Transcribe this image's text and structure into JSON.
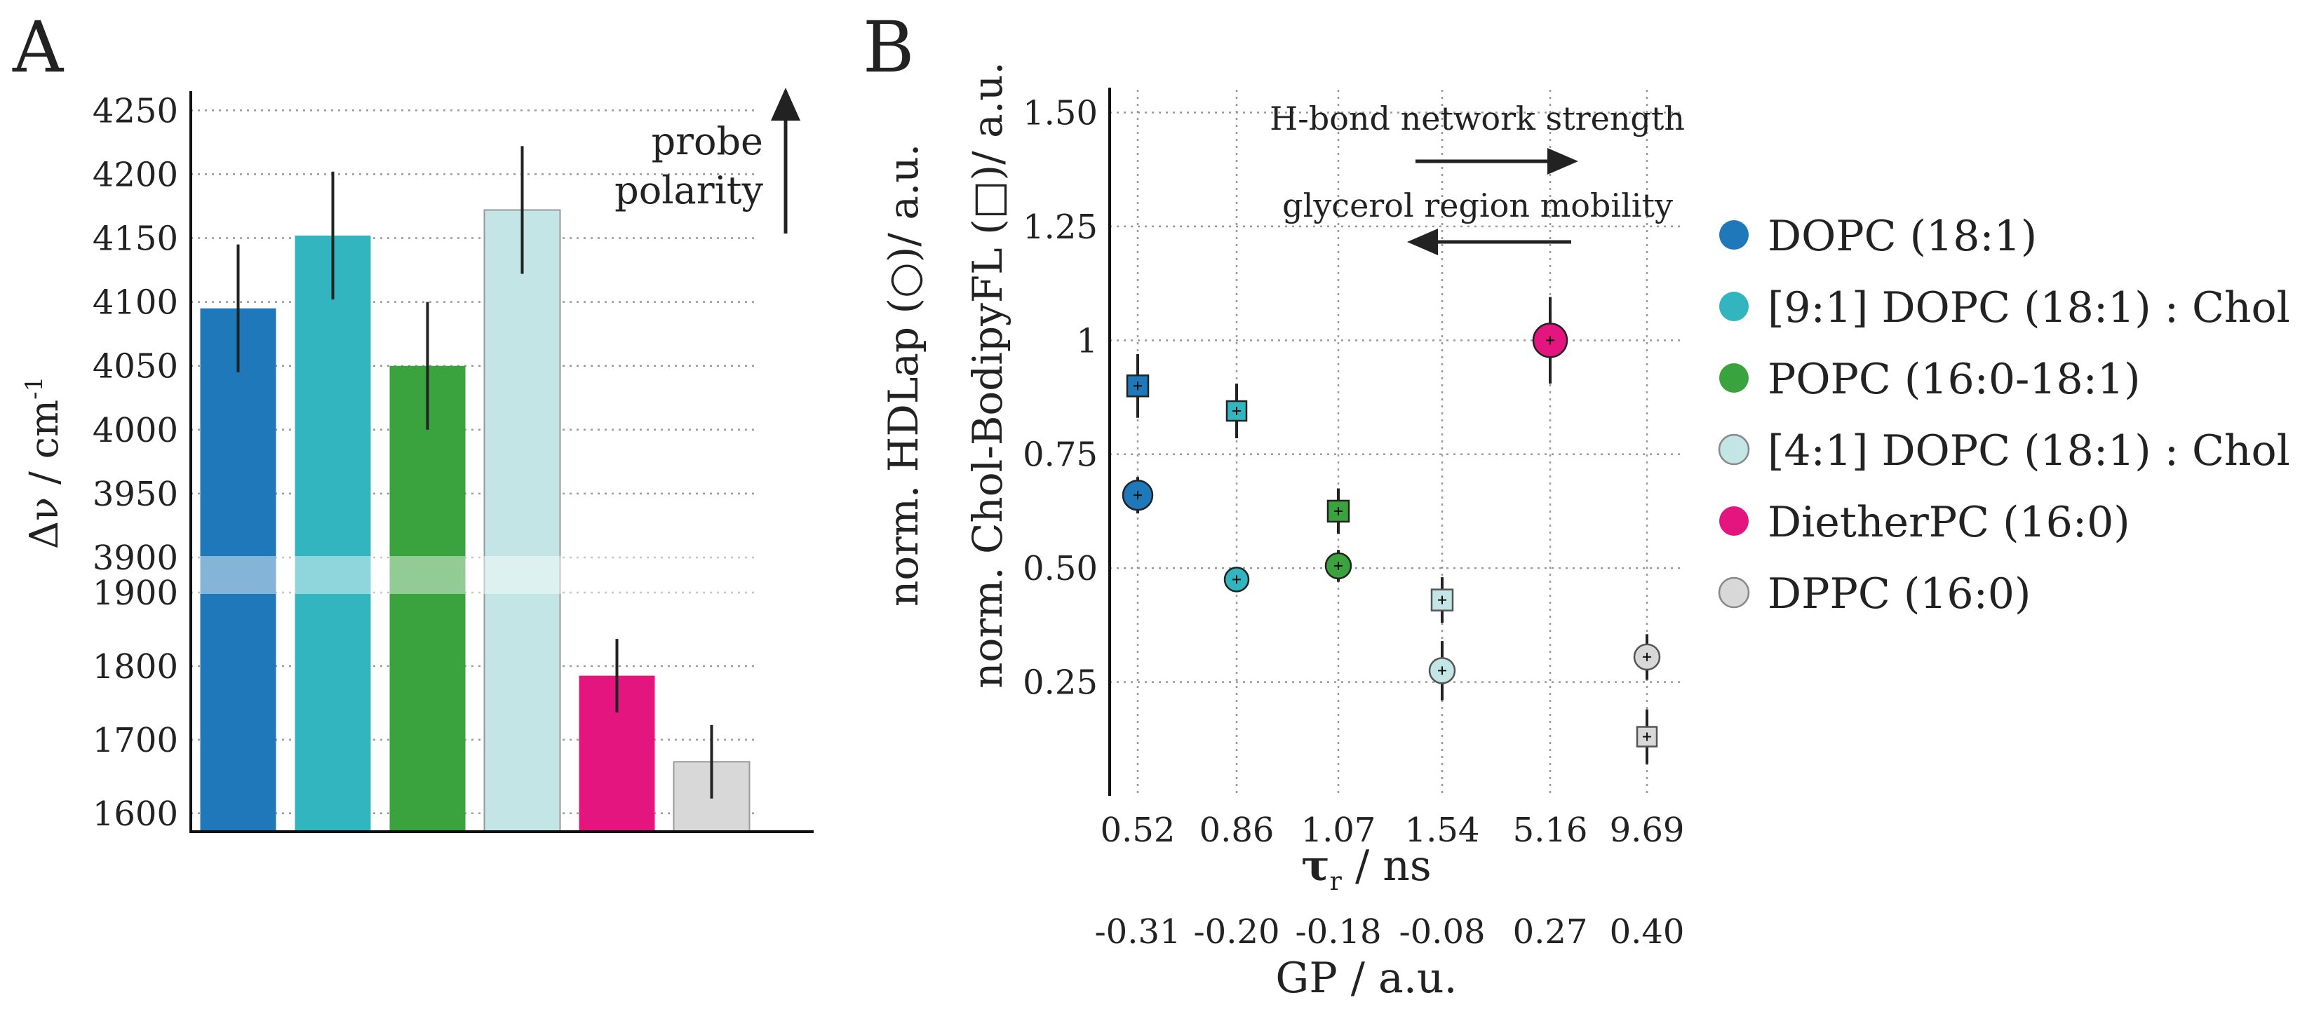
{
  "panel_a": {
    "label": "A",
    "ylabel": "Δν / cm",
    "ylabel_sup": "-1",
    "annotation": [
      "probe",
      "polarity"
    ]
  },
  "panel_b": {
    "label": "B",
    "ylabel_line1": "norm. HDLap (○)/ a.u.",
    "ylabel_line2": "norm. Chol-BodipyFL (□)/ a.u.",
    "xlabel_tau": "τ",
    "xlabel_tau_sub": "r",
    "xlabel_tau_unit": " / ns",
    "xlabel_gp": "GP / a.u.",
    "arrow1_label": "H-bond network strength",
    "arrow2_label": "glycerol region mobility"
  },
  "legend": [
    {
      "name": "DOPC (18:1)",
      "color": "#1f78b9"
    },
    {
      "name": "[9:1] DOPC (18:1) : Chol",
      "color": "#33b5bf"
    },
    {
      "name": "POPC (16:0-18:1)",
      "color": "#3aa33d"
    },
    {
      "name": "[4:1] DOPC (18:1) : Chol",
      "color": "#c3e5e6"
    },
    {
      "name": "DietherPC (16:0)",
      "color": "#e5157f"
    },
    {
      "name": "DPPC (16:0)",
      "color": "#d8d8d8"
    }
  ],
  "chart_data": [
    {
      "type": "bar",
      "title": "A",
      "ylabel": "Δν / cm-1",
      "broken_axis": true,
      "upper_ticks": [
        3900,
        3950,
        4000,
        4050,
        4100,
        4150,
        4200,
        4250
      ],
      "lower_ticks": [
        1600,
        1700,
        1800,
        1900
      ],
      "upper_ylim": [
        3900,
        4265
      ],
      "lower_ylim": [
        1575,
        1900
      ],
      "categories": [
        "DOPC (18:1)",
        "[9:1] DOPC (18:1) : Chol",
        "POPC (16:0-18:1)",
        "[4:1] DOPC (18:1) : Chol",
        "DietherPC (16:0)",
        "DPPC (16:0)"
      ],
      "values": [
        4095,
        4152,
        4050,
        4172,
        1787,
        1670
      ],
      "errors": [
        50,
        50,
        50,
        50,
        50,
        50
      ],
      "colors": [
        "#1f78b9",
        "#33b5bf",
        "#3aa33d",
        "#c3e5e6",
        "#e5157f",
        "#d8d8d8"
      ]
    },
    {
      "type": "scatter",
      "title": "B",
      "ylabel": "norm. HDLap (○)/ a.u. ; norm. Chol-BodipyFL (□)/ a.u.",
      "xlabel": "τr / ns ; GP / a.u.",
      "x_tau_labels": [
        "0.52",
        "0.86",
        "1.07",
        "1.54",
        "5.16",
        "9.69"
      ],
      "x_gp_labels": [
        "-0.31",
        "-0.20",
        "-0.18",
        "-0.08",
        "0.27",
        "0.40"
      ],
      "ylim": [
        0,
        1.55
      ],
      "yticks": [
        "0.25",
        "0.50",
        "0.75",
        "1",
        "1.25",
        "1.50"
      ],
      "ytick_values": [
        0.25,
        0.5,
        0.75,
        1.0,
        1.25,
        1.5
      ],
      "series": [
        {
          "name": "HDLap (circle)",
          "marker": "circle",
          "values": [
            0.66,
            0.475,
            0.505,
            0.275,
            1.0,
            0.305
          ],
          "errors": [
            0.04,
            0.025,
            0.035,
            0.065,
            0.095,
            0.05
          ]
        },
        {
          "name": "Chol-BodipyFL (square)",
          "marker": "square",
          "values": [
            0.9,
            0.845,
            0.625,
            0.43,
            null,
            0.13
          ],
          "errors": [
            0.07,
            0.06,
            0.05,
            0.05,
            null,
            0.06
          ]
        }
      ],
      "colors": [
        "#1f78b9",
        "#33b5bf",
        "#3aa33d",
        "#c3e5e6",
        "#e5157f",
        "#d8d8d8"
      ]
    }
  ]
}
